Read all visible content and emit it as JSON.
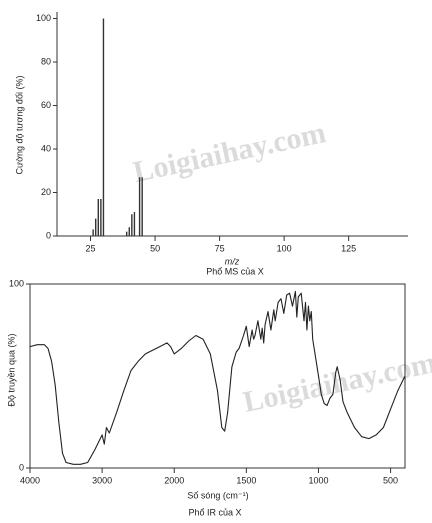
{
  "chart_data": [
    {
      "type": "bar",
      "title": "Phổ MS của X",
      "xlabel": "m/z",
      "ylabel": "Cường độ tương đối (%)",
      "watermark": "Loigiaihay.com",
      "x": [
        26,
        27,
        28,
        29,
        30,
        39,
        40,
        41,
        42,
        44,
        45
      ],
      "values": [
        3,
        8,
        17,
        17,
        100,
        2,
        4,
        10,
        11,
        27,
        27
      ],
      "color": "#333333",
      "xlim": [
        12,
        148
      ],
      "xticks": [
        25,
        50,
        75,
        100,
        125
      ],
      "ylim": [
        0,
        103
      ],
      "yticks": [
        0,
        20,
        40,
        60,
        80,
        100
      ]
    },
    {
      "type": "line",
      "title": "Phổ IR của X",
      "xlabel": "Số sóng (cm⁻¹)",
      "ylabel": "Độ truyền qua (%)",
      "watermark": "Loigiaihay.com",
      "xscale": "split",
      "x": [
        4000,
        3900,
        3800,
        3750,
        3700,
        3650,
        3600,
        3550,
        3500,
        3400,
        3300,
        3200,
        3100,
        3050,
        3000,
        2970,
        2940,
        2900,
        2800,
        2700,
        2600,
        2500,
        2400,
        2300,
        2200,
        2100,
        2050,
        2000,
        1950,
        1900,
        1850,
        1800,
        1750,
        1700,
        1670,
        1650,
        1630,
        1600,
        1570,
        1550,
        1520,
        1500,
        1480,
        1460,
        1450,
        1440,
        1420,
        1400,
        1390,
        1380,
        1370,
        1350,
        1330,
        1310,
        1300,
        1280,
        1260,
        1240,
        1220,
        1200,
        1180,
        1160,
        1150,
        1140,
        1120,
        1100,
        1090,
        1080,
        1070,
        1060,
        1050,
        1040,
        1020,
        1000,
        980,
        960,
        940,
        920,
        900,
        880,
        870,
        850,
        830,
        800,
        750,
        700,
        650,
        600,
        550,
        500,
        450,
        400
      ],
      "values": [
        66,
        67,
        67,
        65,
        58,
        45,
        25,
        8,
        3,
        2,
        2,
        3,
        10,
        14,
        18,
        13,
        22,
        19,
        30,
        42,
        53,
        58,
        62,
        64,
        66,
        68,
        66,
        62,
        65,
        69,
        72,
        70,
        62,
        42,
        22,
        20,
        30,
        55,
        63,
        65,
        72,
        77,
        66,
        75,
        70,
        72,
        80,
        70,
        76,
        68,
        78,
        85,
        75,
        86,
        80,
        90,
        92,
        84,
        94,
        95,
        88,
        96,
        82,
        93,
        95,
        80,
        90,
        75,
        88,
        80,
        85,
        70,
        60,
        50,
        40,
        35,
        34,
        38,
        40,
        52,
        55,
        48,
        36,
        30,
        22,
        17,
        16,
        18,
        22,
        32,
        42,
        50
      ],
      "color": "#222222",
      "xlim": [
        4000,
        400
      ],
      "xticks": [
        4000,
        3000,
        2000,
        1500,
        1000,
        500
      ],
      "ylim": [
        0,
        100
      ],
      "yticks": [
        0,
        100
      ]
    }
  ]
}
